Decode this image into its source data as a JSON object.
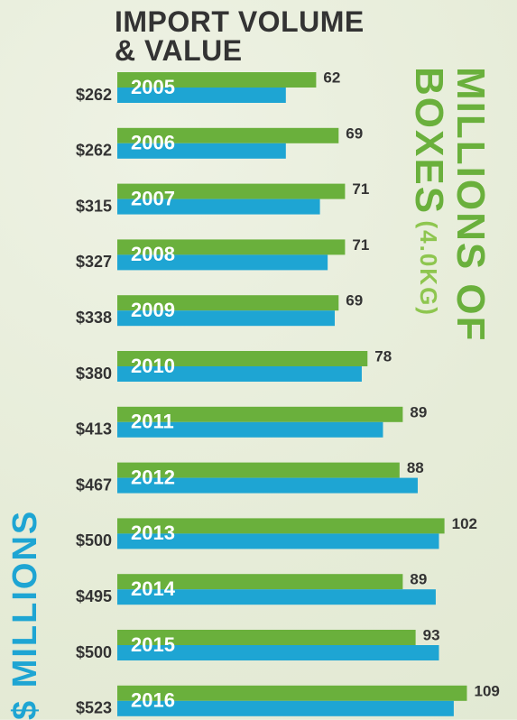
{
  "chart_data": {
    "type": "bar",
    "title": "IMPORT VOLUME & VALUE",
    "unit_note": "(4.0KG)",
    "categories": [
      "2005",
      "2006",
      "2007",
      "2008",
      "2009",
      "2010",
      "2011",
      "2012",
      "2013",
      "2014",
      "2015",
      "2016"
    ],
    "series": [
      {
        "name": "MILLIONS OF BOXES",
        "color": "#6ab03c",
        "values": [
          62,
          69,
          71,
          71,
          69,
          78,
          89,
          88,
          102,
          89,
          93,
          109
        ]
      },
      {
        "name": "$ MILLIONS",
        "color": "#1ea5d3",
        "values": [
          262,
          262,
          315,
          327,
          338,
          380,
          413,
          467,
          500,
          495,
          500,
          523
        ],
        "value_labels": [
          "$262",
          "$262",
          "$315",
          "$327",
          "$338",
          "$380",
          "$413",
          "$467",
          "$500",
          "$495",
          "$500",
          "$523"
        ]
      }
    ]
  }
}
